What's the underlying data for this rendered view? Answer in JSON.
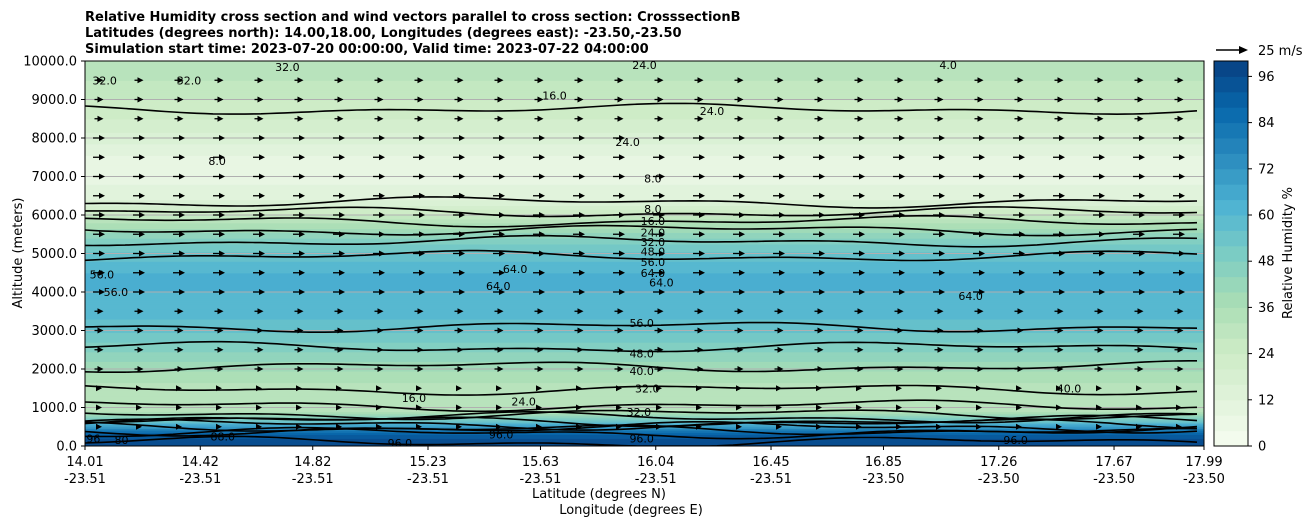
{
  "title_lines": [
    "Relative Humidity cross section and wind vectors parallel to cross section: CrosssectionB",
    "Latitudes (degrees north): 14.00,18.00, Longitudes (degrees east): -23.50,-23.50",
    "Simulation start time: 2023-07-20 00:00:00, Valid time: 2023-07-22 04:00:00"
  ],
  "chart_data": {
    "type": "heatmap",
    "ylabel": "Altitude (meters)",
    "xlabel_lat": "Latitude (degrees N)",
    "xlabel_lon": "Longitude (degrees E)",
    "ylim": [
      0,
      10000
    ],
    "yticks": [
      "0.0",
      "1000.0",
      "2000.0",
      "3000.0",
      "4000.0",
      "5000.0",
      "6000.0",
      "7000.0",
      "8000.0",
      "9000.0",
      "10000.0"
    ],
    "xticks": [
      {
        "lat": "14.01",
        "lon": "-23.51"
      },
      {
        "lat": "14.42",
        "lon": "-23.51"
      },
      {
        "lat": "14.82",
        "lon": "-23.51"
      },
      {
        "lat": "15.23",
        "lon": "-23.51"
      },
      {
        "lat": "15.63",
        "lon": "-23.51"
      },
      {
        "lat": "16.04",
        "lon": "-23.51"
      },
      {
        "lat": "16.45",
        "lon": "-23.51"
      },
      {
        "lat": "16.85",
        "lon": "-23.50"
      },
      {
        "lat": "17.26",
        "lon": "-23.50"
      },
      {
        "lat": "17.67",
        "lon": "-23.50"
      },
      {
        "lat": "17.99",
        "lon": "-23.50"
      }
    ],
    "xlim": [
      14.01,
      17.99
    ],
    "grid": "horizontal",
    "rh_profile": {
      "altitudes": [
        0,
        300,
        600,
        900,
        1200,
        1600,
        2000,
        2500,
        3000,
        3500,
        4000,
        4500,
        5000,
        5500,
        6000,
        6400,
        7000,
        7500,
        8000,
        8500,
        9000,
        9500,
        10000
      ],
      "values": [
        98,
        92,
        60,
        34,
        30,
        33,
        39,
        47,
        55,
        60,
        62,
        62,
        55,
        44,
        26,
        14,
        8,
        9,
        16,
        22,
        26,
        30,
        32
      ]
    },
    "contour_levels": [
      8.0,
      16.0,
      24.0,
      32.0,
      40.0,
      48.0,
      56.0,
      64.0,
      72.0,
      80.0,
      88.0,
      96.0
    ],
    "contour_labels": [
      {
        "text": "32.0",
        "lat": 14.08,
        "alt": 9500
      },
      {
        "text": "32.0",
        "lat": 14.38,
        "alt": 9500
      },
      {
        "text": "32.0",
        "lat": 14.73,
        "alt": 9850
      },
      {
        "text": "24.0",
        "lat": 16.0,
        "alt": 9900
      },
      {
        "text": "4.0",
        "lat": 17.08,
        "alt": 9900
      },
      {
        "text": "16.0",
        "lat": 15.68,
        "alt": 9100
      },
      {
        "text": "24.0",
        "lat": 16.24,
        "alt": 8700
      },
      {
        "text": "24.0",
        "lat": 15.94,
        "alt": 7900
      },
      {
        "text": "8.0",
        "lat": 14.48,
        "alt": 7400
      },
      {
        "text": "8.0",
        "lat": 16.03,
        "alt": 6950
      },
      {
        "text": "8.0",
        "lat": 16.03,
        "alt": 6150
      },
      {
        "text": "16.0",
        "lat": 16.03,
        "alt": 5850
      },
      {
        "text": "24.0",
        "lat": 16.03,
        "alt": 5550
      },
      {
        "text": "32.0",
        "lat": 16.03,
        "alt": 5300
      },
      {
        "text": "48.0",
        "lat": 16.03,
        "alt": 5050
      },
      {
        "text": "56.0",
        "lat": 16.03,
        "alt": 4780
      },
      {
        "text": "64.0",
        "lat": 16.03,
        "alt": 4500
      },
      {
        "text": "64.0",
        "lat": 15.54,
        "alt": 4600
      },
      {
        "text": "64.0",
        "lat": 15.48,
        "alt": 4150
      },
      {
        "text": "64.0",
        "lat": 16.06,
        "alt": 4250
      },
      {
        "text": "64.0",
        "lat": 17.16,
        "alt": 3900
      },
      {
        "text": "56.0",
        "lat": 14.07,
        "alt": 4450
      },
      {
        "text": "56.0",
        "lat": 14.12,
        "alt": 4000
      },
      {
        "text": "56.0",
        "lat": 15.99,
        "alt": 3200
      },
      {
        "text": "48.0",
        "lat": 15.99,
        "alt": 2400
      },
      {
        "text": "40.0",
        "lat": 15.99,
        "alt": 1950
      },
      {
        "text": "32.0",
        "lat": 16.01,
        "alt": 1500
      },
      {
        "text": "40.0",
        "lat": 17.51,
        "alt": 1500
      },
      {
        "text": "32.0",
        "lat": 15.98,
        "alt": 880
      },
      {
        "text": "96.0",
        "lat": 15.99,
        "alt": 200
      },
      {
        "text": "96.0",
        "lat": 15.13,
        "alt": 80
      },
      {
        "text": "96.0",
        "lat": 15.49,
        "alt": 300
      },
      {
        "text": "96.0",
        "lat": 17.32,
        "alt": 150
      },
      {
        "text": "24.0",
        "lat": 15.57,
        "alt": 1150
      },
      {
        "text": "16.0",
        "lat": 15.18,
        "alt": 1250
      },
      {
        "text": "88.0",
        "lat": 14.5,
        "alt": 250
      },
      {
        "text": "80",
        "lat": 14.14,
        "alt": 150
      },
      {
        "text": "96",
        "lat": 14.04,
        "alt": 200
      }
    ],
    "wind_vectors": {
      "reference": "25 m/s",
      "direction": "parallel to cross section, southward-to-northward (rightward)"
    },
    "colorbar": {
      "label": "Relative Humidity %",
      "ticks": [
        "0",
        "12",
        "24",
        "36",
        "48",
        "60",
        "72",
        "84",
        "96"
      ],
      "range": [
        0,
        100
      ],
      "colors": [
        "#f7fcf0",
        "#e0f3db",
        "#ccebc5",
        "#a8ddb5",
        "#7bccc4",
        "#4eb3d3",
        "#2b8cbe",
        "#0868ac",
        "#084081"
      ]
    }
  }
}
